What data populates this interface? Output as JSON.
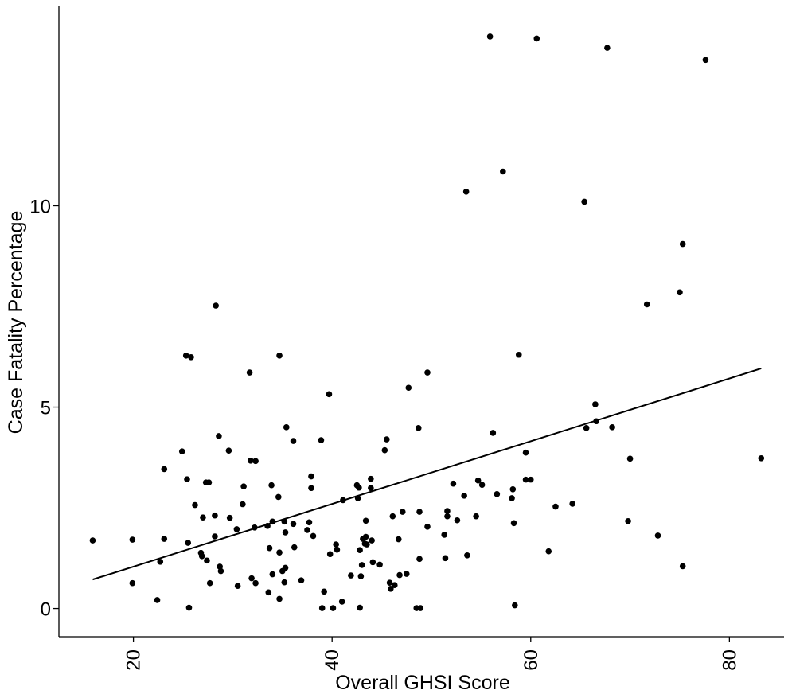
{
  "chart_data": {
    "type": "scatter",
    "xlabel": "Overall GHSI Score",
    "ylabel": "Case Fatality Percentage",
    "xlim": [
      12.5,
      85.5
    ],
    "ylim": [
      -0.7,
      14.95
    ],
    "x_ticks": [
      20,
      40,
      60,
      80
    ],
    "y_ticks": [
      0,
      5,
      10
    ],
    "x_tick_labels": [
      "20",
      "40",
      "60",
      "80"
    ],
    "y_tick_labels": [
      "0",
      "5",
      "10"
    ],
    "grid": false,
    "legend": false,
    "trend_line": {
      "x": [
        15.9,
        83.2
      ],
      "y": [
        0.72,
        5.96
      ]
    },
    "points": [
      [
        15.9,
        1.69
      ],
      [
        19.9,
        1.71
      ],
      [
        19.9,
        0.63
      ],
      [
        22.4,
        0.21
      ],
      [
        22.7,
        1.16
      ],
      [
        23.1,
        3.46
      ],
      [
        23.1,
        1.73
      ],
      [
        24.9,
        3.9
      ],
      [
        25.3,
        6.28
      ],
      [
        25.4,
        3.21
      ],
      [
        25.5,
        1.63
      ],
      [
        25.6,
        0.02
      ],
      [
        25.8,
        6.24
      ],
      [
        26.2,
        2.57
      ],
      [
        26.8,
        1.38
      ],
      [
        26.9,
        1.3
      ],
      [
        27.0,
        2.26
      ],
      [
        27.3,
        3.13
      ],
      [
        27.4,
        1.19
      ],
      [
        27.6,
        3.13
      ],
      [
        27.7,
        0.63
      ],
      [
        28.2,
        2.31
      ],
      [
        28.2,
        1.79
      ],
      [
        28.3,
        7.52
      ],
      [
        28.6,
        4.28
      ],
      [
        28.7,
        1.04
      ],
      [
        28.8,
        0.93
      ],
      [
        29.6,
        3.92
      ],
      [
        29.7,
        2.25
      ],
      [
        30.4,
        1.97
      ],
      [
        30.5,
        0.56
      ],
      [
        31.0,
        2.59
      ],
      [
        31.1,
        3.03
      ],
      [
        31.7,
        5.86
      ],
      [
        31.8,
        3.67
      ],
      [
        31.9,
        0.75
      ],
      [
        32.2,
        2.01
      ],
      [
        32.3,
        3.66
      ],
      [
        32.3,
        0.63
      ],
      [
        33.5,
        2.05
      ],
      [
        33.6,
        0.4
      ],
      [
        33.7,
        1.5
      ],
      [
        33.9,
        3.06
      ],
      [
        34.0,
        0.85
      ],
      [
        34.0,
        2.16
      ],
      [
        34.6,
        2.77
      ],
      [
        34.7,
        6.28
      ],
      [
        34.7,
        1.39
      ],
      [
        34.7,
        0.24
      ],
      [
        35.0,
        0.93
      ],
      [
        35.2,
        0.65
      ],
      [
        35.2,
        2.16
      ],
      [
        35.3,
        1.89
      ],
      [
        35.3,
        1.01
      ],
      [
        35.4,
        4.5
      ],
      [
        36.1,
        4.16
      ],
      [
        36.1,
        2.1
      ],
      [
        36.2,
        1.52
      ],
      [
        36.9,
        0.7
      ],
      [
        37.5,
        1.95
      ],
      [
        37.7,
        2.14
      ],
      [
        37.9,
        3.28
      ],
      [
        37.9,
        2.99
      ],
      [
        38.1,
        1.8
      ],
      [
        38.9,
        4.18
      ],
      [
        39.0,
        0.01
      ],
      [
        39.2,
        0.42
      ],
      [
        39.7,
        5.32
      ],
      [
        39.8,
        1.35
      ],
      [
        40.1,
        0.01
      ],
      [
        40.4,
        1.59
      ],
      [
        40.5,
        1.46
      ],
      [
        41.0,
        0.17
      ],
      [
        41.1,
        2.69
      ],
      [
        41.9,
        0.82
      ],
      [
        42.5,
        3.06
      ],
      [
        42.6,
        2.74
      ],
      [
        42.7,
        3.0
      ],
      [
        42.8,
        0.02
      ],
      [
        42.8,
        1.45
      ],
      [
        42.9,
        0.8
      ],
      [
        43.0,
        1.08
      ],
      [
        43.1,
        1.73
      ],
      [
        43.3,
        1.61
      ],
      [
        43.4,
        2.18
      ],
      [
        43.4,
        1.78
      ],
      [
        43.5,
        1.59
      ],
      [
        43.9,
        3.22
      ],
      [
        43.9,
        2.99
      ],
      [
        44.0,
        1.69
      ],
      [
        44.1,
        1.15
      ],
      [
        44.8,
        1.09
      ],
      [
        45.3,
        3.93
      ],
      [
        45.5,
        4.2
      ],
      [
        45.8,
        0.64
      ],
      [
        45.9,
        0.49
      ],
      [
        46.1,
        2.29
      ],
      [
        46.3,
        0.58
      ],
      [
        46.7,
        1.72
      ],
      [
        46.8,
        0.83
      ],
      [
        47.1,
        2.4
      ],
      [
        47.5,
        0.86
      ],
      [
        47.7,
        5.48
      ],
      [
        48.5,
        0.01
      ],
      [
        48.7,
        4.48
      ],
      [
        48.8,
        2.4
      ],
      [
        48.8,
        1.23
      ],
      [
        48.9,
        0.01
      ],
      [
        49.6,
        5.86
      ],
      [
        49.6,
        2.03
      ],
      [
        51.3,
        1.83
      ],
      [
        51.4,
        1.25
      ],
      [
        51.6,
        2.29
      ],
      [
        51.6,
        2.42
      ],
      [
        52.2,
        3.1
      ],
      [
        52.6,
        2.19
      ],
      [
        53.3,
        2.8
      ],
      [
        53.5,
        10.35
      ],
      [
        53.6,
        1.32
      ],
      [
        54.5,
        2.29
      ],
      [
        54.7,
        3.18
      ],
      [
        55.1,
        3.07
      ],
      [
        55.9,
        14.2
      ],
      [
        56.2,
        4.36
      ],
      [
        56.6,
        2.84
      ],
      [
        57.2,
        10.85
      ],
      [
        58.1,
        2.74
      ],
      [
        58.2,
        2.96
      ],
      [
        58.3,
        2.12
      ],
      [
        58.4,
        0.08
      ],
      [
        58.8,
        6.3
      ],
      [
        59.5,
        3.87
      ],
      [
        59.5,
        3.2
      ],
      [
        60.0,
        3.2
      ],
      [
        60.6,
        14.15
      ],
      [
        61.8,
        1.42
      ],
      [
        62.5,
        2.53
      ],
      [
        64.2,
        2.6
      ],
      [
        65.4,
        10.1
      ],
      [
        65.6,
        4.48
      ],
      [
        66.5,
        5.07
      ],
      [
        66.6,
        4.65
      ],
      [
        67.7,
        13.92
      ],
      [
        68.2,
        4.5
      ],
      [
        69.8,
        2.17
      ],
      [
        70.0,
        3.72
      ],
      [
        71.7,
        7.55
      ],
      [
        72.8,
        1.81
      ],
      [
        75.0,
        7.85
      ],
      [
        75.3,
        1.05
      ],
      [
        75.3,
        9.05
      ],
      [
        77.6,
        13.62
      ],
      [
        83.2,
        3.73
      ]
    ]
  }
}
